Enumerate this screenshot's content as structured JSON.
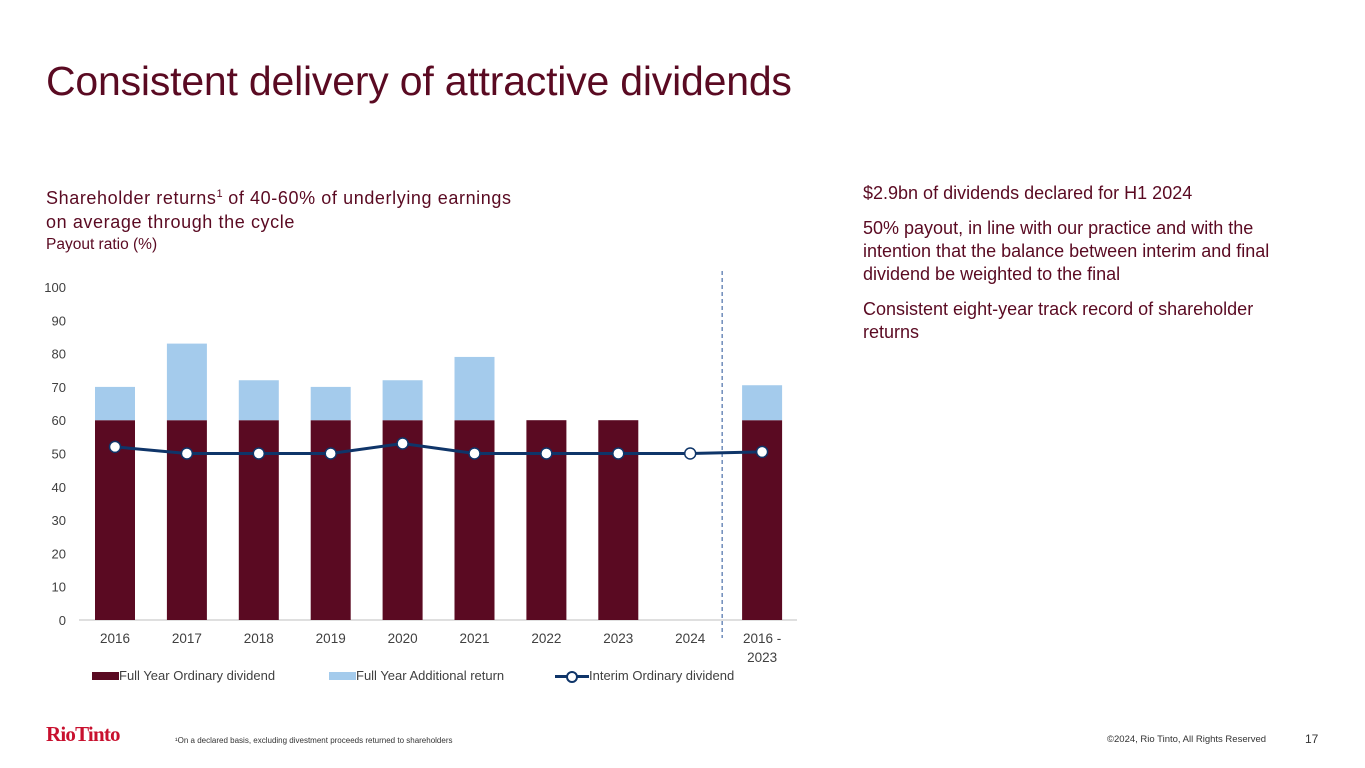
{
  "title": "Consistent delivery of attractive dividends",
  "chart_heading": {
    "main": "Shareholder returns",
    "superscript": "1",
    "rest": " of 40-60% of underlying earnings on average through the cycle",
    "subtitle": "Payout ratio (%)"
  },
  "right_panel": {
    "paragraphs": [
      "$2.9bn of dividends declared for H1 2024",
      "50% payout, in line with our practice and with the intention that the balance between interim and final dividend be weighted to the final",
      "Consistent eight-year track record of shareholder returns"
    ]
  },
  "footer": {
    "logo": "RioTinto",
    "footnote": "¹On a declared basis, excluding divestment proceeds returned to shareholders",
    "copyright": "©2024, Rio Tinto, All Rights Reserved",
    "page_number": "17"
  },
  "colors": {
    "ordinary": "#5a0a22",
    "additional": "#a4cbec",
    "interim": "#0f3569",
    "divider": "#4a6fa8"
  },
  "chart_data": {
    "type": "bar",
    "title": "Payout ratio (%)",
    "categories": [
      "2016",
      "2017",
      "2018",
      "2019",
      "2020",
      "2021",
      "2022",
      "2023",
      "2024",
      "2016 - 2023"
    ],
    "category_lines": [
      [
        "2016"
      ],
      [
        "2017"
      ],
      [
        "2018"
      ],
      [
        "2019"
      ],
      [
        "2020"
      ],
      [
        "2021"
      ],
      [
        "2022"
      ],
      [
        "2023"
      ],
      [
        "2024"
      ],
      [
        "2016 -",
        "2023"
      ]
    ],
    "stacked": true,
    "series": [
      {
        "name": "Full Year Ordinary dividend",
        "kind": "bar",
        "values": [
          60,
          60,
          60,
          60,
          60,
          60,
          60,
          60,
          null,
          60
        ]
      },
      {
        "name": "Full Year Additional return",
        "kind": "bar",
        "values": [
          10,
          23,
          12,
          10,
          12,
          19,
          0,
          0,
          null,
          10.5
        ]
      },
      {
        "name": "Interim Ordinary dividend",
        "kind": "line",
        "values": [
          52,
          50,
          50,
          50,
          53,
          50,
          50,
          50,
          50,
          50.5
        ]
      }
    ],
    "y_ticks": [
      "0",
      "10",
      "20",
      "30",
      "40",
      "50",
      "60",
      "70",
      "80",
      "90",
      "100"
    ],
    "ylim": [
      0,
      100
    ],
    "xlabel": "",
    "ylabel": "Payout ratio (%)",
    "divider_after_category": "2024",
    "legend_position": "bottom"
  }
}
